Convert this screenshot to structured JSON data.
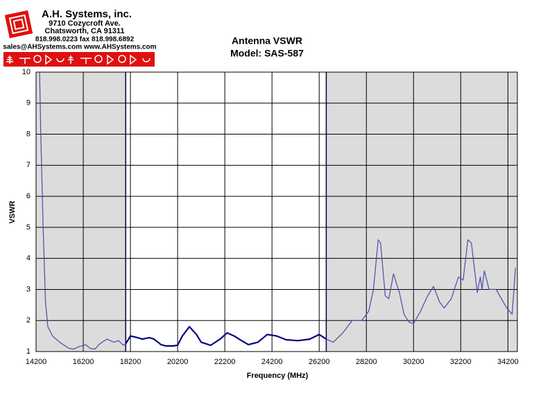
{
  "header": {
    "company": "A.H. Systems, inc.",
    "address": "9710 Cozycroft Ave.",
    "city": "Chatsworth, CA 91311",
    "phone": "818.998.0223 fax 818.998.6892",
    "web": "sales@AHSystems.com www.AHSystems.com"
  },
  "chart_data": {
    "type": "line",
    "title": "Antenna VSWR",
    "subtitle": "Model: SAS-587",
    "x_label": "Frequency (MHz)",
    "y_label": "VSWR",
    "xlim": [
      14200,
      34600
    ],
    "ylim": [
      1,
      10
    ],
    "xticks": [
      14200,
      16200,
      18200,
      20200,
      22200,
      24200,
      26200,
      28200,
      30200,
      32200,
      34200
    ],
    "yticks": [
      1,
      2,
      3,
      4,
      5,
      6,
      7,
      8,
      9,
      10
    ],
    "grid": true,
    "bands": [
      {
        "from": 14200,
        "to": 18000,
        "color": "#dcdcdc"
      },
      {
        "from": 26500,
        "to": 34600,
        "color": "#dcdcdc"
      }
    ],
    "series": [
      {
        "color": "#4a4aa8",
        "width": 1.2,
        "x": [
          14350,
          14400,
          14500,
          14600,
          14700,
          14900,
          15200,
          15600,
          15800,
          16000,
          16300,
          16500,
          16700,
          16900,
          17200,
          17500,
          17700,
          17900,
          18000
        ],
        "values": [
          10,
          8,
          5,
          2.6,
          1.8,
          1.5,
          1.3,
          1.1,
          1.08,
          1.15,
          1.22,
          1.1,
          1.08,
          1.25,
          1.4,
          1.3,
          1.35,
          1.2,
          1.25
        ]
      },
      {
        "color": "#000080",
        "width": 2.2,
        "x": [
          18000,
          18200,
          18500,
          18700,
          19000,
          19200,
          19500,
          19700,
          20000,
          20200,
          20400,
          20700,
          21000,
          21200,
          21600,
          22000,
          22300,
          22600,
          22800,
          23200,
          23600,
          24000,
          24400,
          24800,
          25300,
          25800,
          26200,
          26500
        ],
        "values": [
          1.25,
          1.5,
          1.45,
          1.4,
          1.45,
          1.4,
          1.22,
          1.18,
          1.18,
          1.2,
          1.5,
          1.8,
          1.55,
          1.3,
          1.2,
          1.4,
          1.6,
          1.5,
          1.4,
          1.22,
          1.3,
          1.55,
          1.5,
          1.38,
          1.35,
          1.4,
          1.55,
          1.4
        ]
      },
      {
        "color": "#4a4aa8",
        "width": 1.2,
        "x": [
          26500,
          26800,
          27200,
          27600,
          28000,
          28300,
          28500,
          28700,
          28800,
          29000,
          29150,
          29350,
          29600,
          29800,
          30000,
          30200,
          30500,
          30800,
          31050,
          31300,
          31500,
          31800,
          32100,
          32300,
          32500,
          32650,
          32900,
          33030,
          33100,
          33200,
          33400,
          33700,
          33850,
          34150,
          34380,
          34520
        ],
        "values": [
          1.4,
          1.3,
          1.6,
          2.0,
          2.0,
          2.3,
          3.0,
          4.6,
          4.5,
          2.8,
          2.7,
          3.5,
          2.9,
          2.2,
          1.95,
          1.9,
          2.3,
          2.8,
          3.1,
          2.6,
          2.4,
          2.7,
          3.4,
          3.3,
          4.6,
          4.5,
          2.9,
          3.4,
          3.0,
          3.6,
          3.0,
          3.0,
          2.8,
          2.4,
          2.2,
          3.7
        ]
      }
    ]
  }
}
